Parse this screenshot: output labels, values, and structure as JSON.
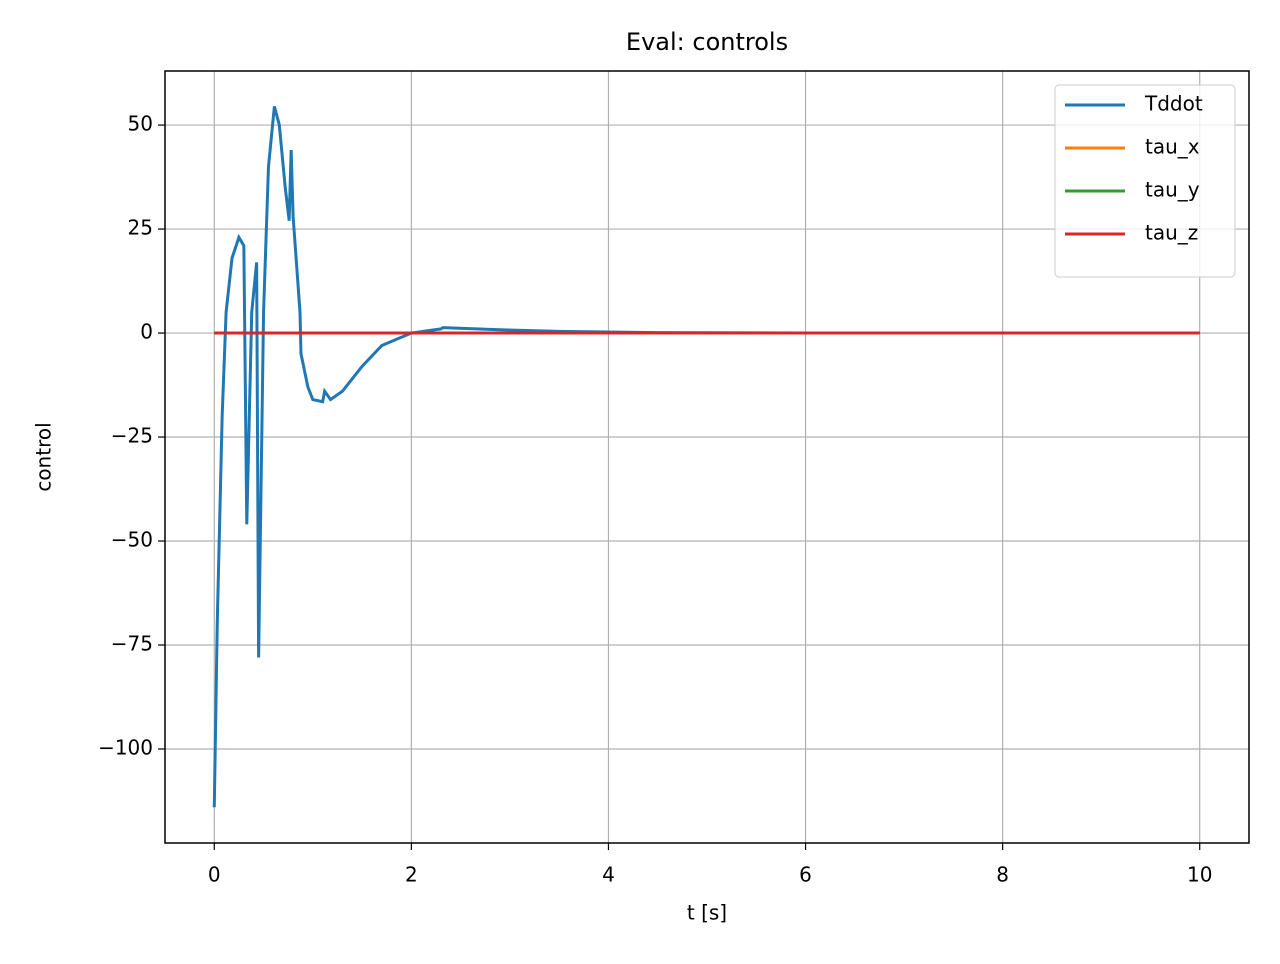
{
  "chart_data": {
    "type": "line",
    "title": "Eval: controls",
    "xlabel": "t [s]",
    "ylabel": "control",
    "x": [
      0,
      0.03,
      0.08,
      0.12,
      0.18,
      0.25,
      0.3,
      0.33,
      0.38,
      0.43,
      0.45,
      0.5,
      0.55,
      0.61,
      0.66,
      0.72,
      0.76,
      0.78,
      0.8,
      0.87,
      0.88,
      0.95,
      1.0,
      1.1,
      1.12,
      1.18,
      1.3,
      1.5,
      1.7,
      1.85,
      2.0,
      2.3,
      2.32,
      2.9,
      3.5,
      4.5,
      6,
      8,
      10
    ],
    "series": [
      {
        "name": "Tddot",
        "color": "#1f77b4",
        "values": [
          -114,
          -70,
          -20,
          5,
          18,
          23,
          21,
          -46,
          5,
          17,
          -78,
          5,
          40,
          54.5,
          50,
          35,
          27,
          44,
          28,
          5,
          -5,
          -13,
          -16,
          -16.5,
          -14,
          -16,
          -14,
          -8,
          -3,
          -1.5,
          0,
          1,
          1.3,
          0.8,
          0.4,
          0.1,
          0,
          0,
          0
        ]
      },
      {
        "name": "tau_x",
        "color": "#ff7f0e",
        "values": [
          0,
          0,
          0,
          0,
          0,
          0,
          0,
          0,
          0,
          0,
          0,
          0,
          0,
          0,
          0,
          0,
          0,
          0,
          0,
          0,
          0,
          0,
          0,
          0,
          0,
          0,
          0,
          0,
          0,
          0,
          0,
          0,
          0,
          0,
          0,
          0,
          0,
          0,
          0
        ]
      },
      {
        "name": "tau_y",
        "color": "#2ca02c",
        "values": [
          0,
          0,
          0,
          0,
          0,
          0,
          0,
          0,
          0,
          0,
          0,
          0,
          0,
          0,
          0,
          0,
          0,
          0,
          0,
          0,
          0,
          0,
          0,
          0,
          0,
          0,
          0,
          0,
          0,
          0,
          0,
          0,
          0,
          0,
          0,
          0,
          0,
          0,
          0
        ]
      },
      {
        "name": "tau_z",
        "color": "#d62728",
        "values": [
          0,
          0,
          0,
          0,
          0,
          0,
          0,
          0,
          0,
          0,
          0,
          0,
          0,
          0,
          0,
          0,
          0,
          0,
          0,
          0,
          0,
          0,
          0,
          0,
          0,
          0,
          0,
          0,
          0,
          0,
          0,
          0,
          0,
          0,
          0,
          0,
          0,
          0,
          0
        ]
      }
    ],
    "xlim": [
      -0.5,
      10.5
    ],
    "ylim": [
      -122.6,
      63
    ],
    "xticks": [
      0,
      2,
      4,
      6,
      8,
      10
    ],
    "yticks": [
      {
        "value": -100,
        "label": "−100"
      },
      {
        "value": -75,
        "label": "−75"
      },
      {
        "value": -50,
        "label": "−50"
      },
      {
        "value": -25,
        "label": "−25"
      },
      0,
      25,
      50
    ],
    "grid": true,
    "legend": "upper right"
  }
}
